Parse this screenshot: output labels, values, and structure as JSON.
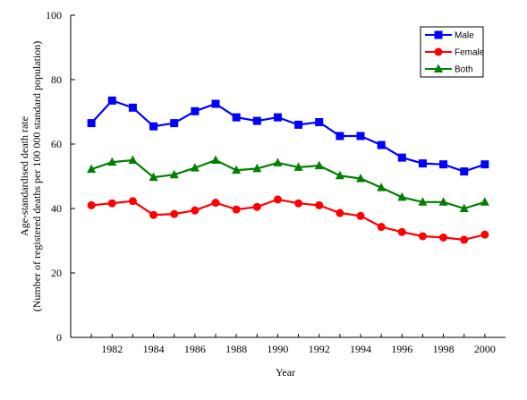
{
  "chart_data": {
    "type": "line",
    "title": "",
    "xlabel": "Year",
    "ylabel_line1": "Age-standardised death rate",
    "ylabel_line2": "(Number of registered deaths per 100 000 standard population)",
    "x": [
      1981,
      1982,
      1983,
      1984,
      1985,
      1986,
      1987,
      1988,
      1989,
      1990,
      1991,
      1992,
      1993,
      1994,
      1995,
      1996,
      1997,
      1998,
      1999,
      2000
    ],
    "x_ticks": [
      1982,
      1984,
      1986,
      1988,
      1990,
      1992,
      1994,
      1996,
      1998,
      2000
    ],
    "xlim": [
      1980,
      2001
    ],
    "ylim": [
      0,
      100
    ],
    "y_ticks": [
      0,
      20,
      40,
      60,
      80,
      100
    ],
    "grid": false,
    "legend_position": "top-right",
    "series": [
      {
        "name": "Male",
        "color": "#0000ff",
        "marker": "square",
        "values": [
          66.5,
          73.5,
          71.3,
          65.5,
          66.5,
          70.2,
          72.5,
          68.3,
          67.2,
          68.3,
          66.0,
          66.8,
          62.5,
          62.5,
          59.7,
          55.8,
          54.0,
          53.7,
          51.5,
          53.7
        ]
      },
      {
        "name": "Female",
        "color": "#ff0000",
        "marker": "circle",
        "values": [
          41.0,
          41.6,
          42.3,
          38.0,
          38.3,
          39.4,
          41.8,
          39.7,
          40.5,
          42.8,
          41.6,
          41.0,
          38.6,
          37.7,
          34.3,
          32.7,
          31.4,
          31.0,
          30.3,
          31.9
        ]
      },
      {
        "name": "Both",
        "color": "#008000",
        "marker": "triangle",
        "values": [
          52.2,
          54.4,
          55.0,
          49.7,
          50.5,
          52.6,
          55.0,
          51.9,
          52.4,
          54.2,
          52.8,
          53.3,
          50.2,
          49.3,
          46.5,
          43.5,
          42.0,
          42.0,
          40.0,
          42.0
        ]
      }
    ]
  }
}
